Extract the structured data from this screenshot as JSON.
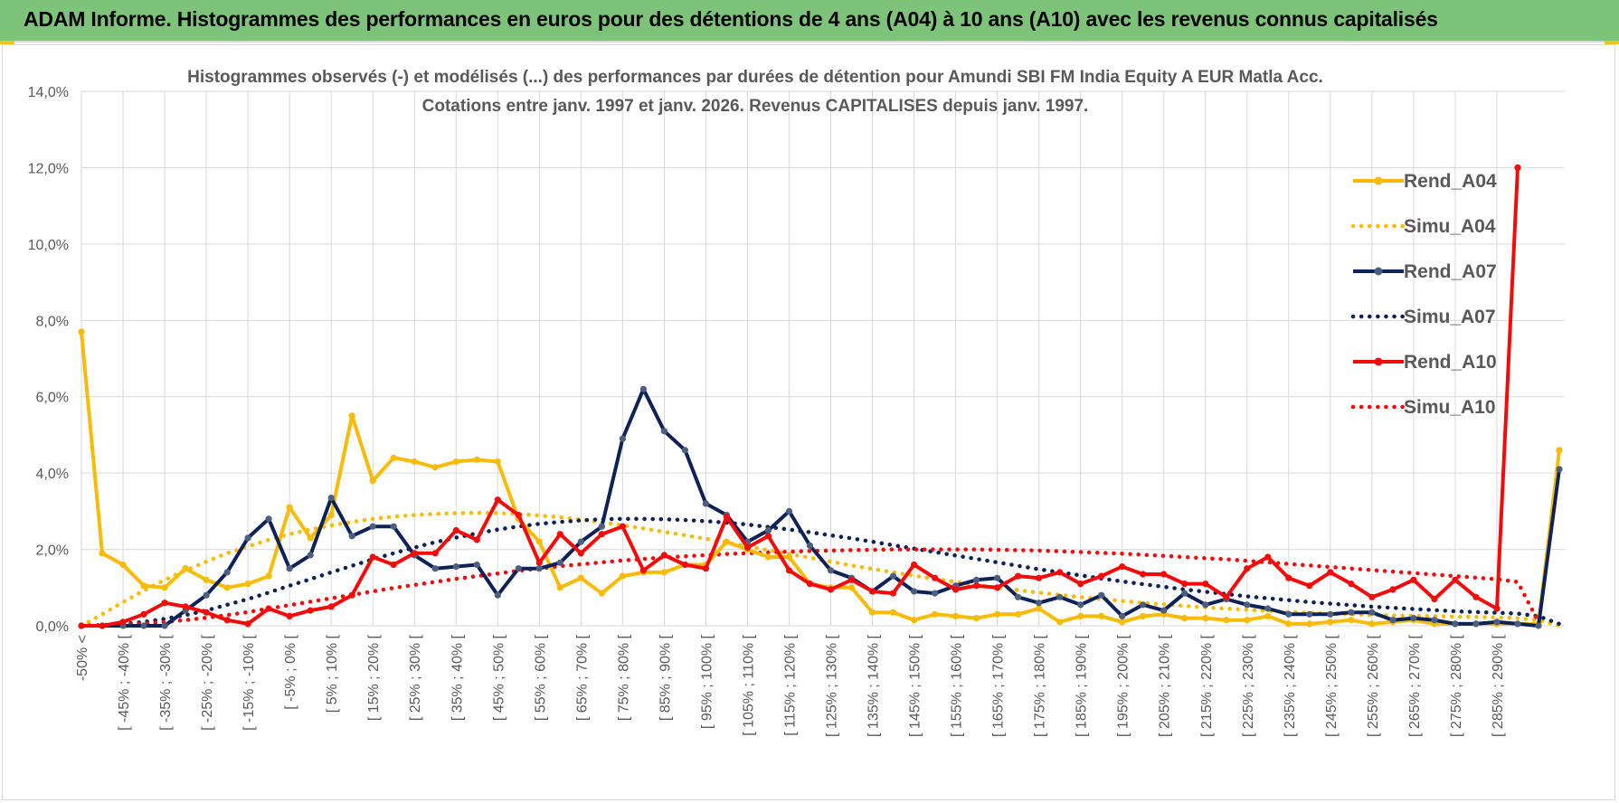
{
  "banner": {
    "title": "ADAM Informe. Histogrammes des performances en euros pour des détentions de 4 ans (A04) à 10 ans (A10) avec les revenus connus capitalisés"
  },
  "colors": {
    "banner_bg": "#7dc47a",
    "a04": "#f8bb08",
    "a07": "#0e2257",
    "a10": "#f50a0a",
    "marker_a07": "#4d5f80",
    "grid": "#d9d9d9"
  },
  "chart_data": {
    "type": "line",
    "title": "Histogrammes observés (-) et modélisés (...) des performances par durées de détention pour Amundi SBI FM India Equity A EUR Matla Acc.",
    "subtitle": "Cotations entre janv. 1997 et janv. 2026. Revenus CAPITALISES depuis janv. 1997.",
    "xlabel": "",
    "ylabel": "",
    "ylim": [
      0,
      14
    ],
    "y_ticks": [
      "0,0%",
      "2,0%",
      "4,0%",
      "6,0%",
      "8,0%",
      "10,0%",
      "12,0%",
      "14,0%"
    ],
    "grid": true,
    "legend_position": "right",
    "x_tick_labels": [
      "-50% <",
      "[ -45% ; -40% [",
      "[ -35% ; -30% [",
      "[ -25% ; -20% [",
      "[ -15% ; -10% [",
      "[ -5% ; 0% [",
      "[ 5% ; 10% [",
      "[ 15% ; 20% [",
      "[ 25% ; 30% [",
      "[ 35% ; 40% [",
      "[ 45% ; 50% [",
      "[ 55% ; 60% [",
      "[ 65% ; 70% [",
      "[ 75% ; 80% [",
      "[ 85% ; 90% [",
      "[ 95% ; 100% [",
      "[ 105% ; 110% [",
      "[ 115% ; 120% [",
      "[ 125% ; 130% [",
      "[ 135% ; 140% [",
      "[ 145% ; 150% [",
      "[ 155% ; 160% [",
      "[ 165% ; 170% [",
      "[ 175% ; 180% [",
      "[ 185% ; 190% [",
      "[ 195% ; 200% [",
      "[ 205% ; 210% [",
      "[ 215% ; 220% [",
      "[ 225% ; 230% [",
      "[ 235% ; 240% [",
      "[ 245% ; 250% [",
      "[ 255% ; 260% [",
      "[ 265% ; 270% [",
      "[ 275% ; 280% [",
      "[ 285% ; 290% ["
    ],
    "series": [
      {
        "name": "Rend_A04",
        "style": "solid",
        "color": "#f8bb08",
        "values": [
          7.7,
          1.9,
          1.6,
          1.05,
          1.0,
          1.5,
          1.2,
          1.0,
          1.1,
          1.3,
          3.1,
          2.3,
          2.9,
          5.5,
          3.8,
          4.4,
          4.3,
          4.15,
          4.3,
          4.35,
          4.3,
          2.8,
          2.2,
          1.0,
          1.25,
          0.85,
          1.3,
          1.4,
          1.4,
          1.6,
          1.6,
          2.2,
          2.0,
          1.8,
          1.8,
          1.1,
          1.0,
          1.0,
          0.35,
          0.35,
          0.15,
          0.3,
          0.25,
          0.2,
          0.3,
          0.3,
          0.45,
          0.1,
          0.25,
          0.25,
          0.1,
          0.25,
          0.3,
          0.2,
          0.2,
          0.15,
          0.15,
          0.25,
          0.05,
          0.05,
          0.1,
          0.15,
          0.05,
          0.1,
          0.15,
          0.05,
          0.05,
          0.05,
          0.05,
          0.05,
          0.05,
          4.6
        ]
      },
      {
        "name": "Simu_A04",
        "style": "dotted",
        "color": "#f8bb08",
        "values": [
          0.0,
          0.3,
          0.62,
          0.92,
          1.2,
          1.45,
          1.68,
          1.9,
          2.08,
          2.25,
          2.4,
          2.52,
          2.63,
          2.72,
          2.8,
          2.86,
          2.9,
          2.93,
          2.95,
          2.96,
          2.95,
          2.93,
          2.89,
          2.84,
          2.78,
          2.71,
          2.63,
          2.55,
          2.46,
          2.37,
          2.28,
          2.18,
          2.08,
          1.98,
          1.88,
          1.78,
          1.68,
          1.58,
          1.49,
          1.4,
          1.31,
          1.23,
          1.15,
          1.07,
          1.0,
          0.93,
          0.87,
          0.81,
          0.75,
          0.7,
          0.65,
          0.6,
          0.56,
          0.52,
          0.48,
          0.45,
          0.42,
          0.39,
          0.36,
          0.34,
          0.32,
          0.3,
          0.28,
          0.27,
          0.26,
          0.25,
          0.24,
          0.23,
          0.22,
          0.2,
          0.15,
          0.0
        ]
      },
      {
        "name": "Rend_A07",
        "style": "solid",
        "color": "#0e2257",
        "values": [
          0.0,
          0.0,
          0.0,
          0.0,
          0.0,
          0.4,
          0.8,
          1.4,
          2.3,
          2.8,
          1.5,
          1.85,
          3.35,
          2.35,
          2.6,
          2.6,
          1.85,
          1.5,
          1.55,
          1.6,
          0.8,
          1.5,
          1.5,
          1.65,
          2.2,
          2.6,
          4.9,
          6.2,
          5.1,
          4.6,
          3.2,
          2.9,
          2.2,
          2.5,
          3.0,
          2.1,
          1.45,
          1.25,
          0.9,
          1.3,
          0.9,
          0.85,
          1.05,
          1.2,
          1.25,
          0.75,
          0.6,
          0.75,
          0.55,
          0.8,
          0.25,
          0.55,
          0.4,
          0.85,
          0.55,
          0.7,
          0.55,
          0.45,
          0.3,
          0.3,
          0.3,
          0.35,
          0.35,
          0.15,
          0.2,
          0.15,
          0.05,
          0.05,
          0.1,
          0.05,
          0.0,
          4.1
        ]
      },
      {
        "name": "Simu_A07",
        "style": "dotted",
        "color": "#0e2257",
        "values": [
          0.0,
          0.02,
          0.05,
          0.1,
          0.18,
          0.28,
          0.4,
          0.55,
          0.7,
          0.87,
          1.05,
          1.22,
          1.4,
          1.57,
          1.74,
          1.9,
          2.05,
          2.19,
          2.31,
          2.42,
          2.52,
          2.6,
          2.67,
          2.72,
          2.76,
          2.79,
          2.8,
          2.8,
          2.79,
          2.77,
          2.74,
          2.7,
          2.65,
          2.59,
          2.52,
          2.45,
          2.37,
          2.29,
          2.2,
          2.11,
          2.02,
          1.93,
          1.84,
          1.75,
          1.66,
          1.57,
          1.48,
          1.4,
          1.32,
          1.24,
          1.16,
          1.09,
          1.02,
          0.95,
          0.89,
          0.83,
          0.77,
          0.72,
          0.67,
          0.62,
          0.58,
          0.54,
          0.5,
          0.47,
          0.44,
          0.41,
          0.38,
          0.36,
          0.34,
          0.32,
          0.25,
          0.05
        ]
      },
      {
        "name": "Rend_A10",
        "style": "solid",
        "color": "#f50a0a",
        "values": [
          0.0,
          0.0,
          0.1,
          0.3,
          0.6,
          0.5,
          0.35,
          0.15,
          0.05,
          0.45,
          0.25,
          0.4,
          0.5,
          0.8,
          1.8,
          1.6,
          1.9,
          1.9,
          2.5,
          2.25,
          3.3,
          2.9,
          1.65,
          2.4,
          1.9,
          2.4,
          2.6,
          1.45,
          1.85,
          1.6,
          1.5,
          2.85,
          2.05,
          2.35,
          1.45,
          1.1,
          0.95,
          1.2,
          0.9,
          0.85,
          1.6,
          1.25,
          0.95,
          1.05,
          1.0,
          1.3,
          1.25,
          1.4,
          1.1,
          1.3,
          1.55,
          1.35,
          1.35,
          1.1,
          1.1,
          0.75,
          1.5,
          1.8,
          1.25,
          1.05,
          1.4,
          1.1,
          0.75,
          0.95,
          1.2,
          0.7,
          1.2,
          0.75,
          0.45,
          12.0
        ]
      },
      {
        "name": "Simu_A10",
        "style": "dotted",
        "color": "#f50a0a",
        "values": [
          0.0,
          0.01,
          0.03,
          0.06,
          0.1,
          0.15,
          0.21,
          0.28,
          0.36,
          0.45,
          0.54,
          0.63,
          0.72,
          0.81,
          0.9,
          0.99,
          1.07,
          1.15,
          1.23,
          1.3,
          1.37,
          1.44,
          1.5,
          1.56,
          1.61,
          1.66,
          1.71,
          1.75,
          1.79,
          1.82,
          1.85,
          1.88,
          1.9,
          1.92,
          1.94,
          1.96,
          1.97,
          1.98,
          1.99,
          2.0,
          2.0,
          2.0,
          2.0,
          2.0,
          1.99,
          1.98,
          1.97,
          1.95,
          1.93,
          1.91,
          1.89,
          1.86,
          1.83,
          1.8,
          1.77,
          1.74,
          1.7,
          1.66,
          1.62,
          1.58,
          1.54,
          1.5,
          1.46,
          1.42,
          1.38,
          1.34,
          1.3,
          1.26,
          1.22,
          1.15,
          0.1
        ]
      }
    ]
  }
}
